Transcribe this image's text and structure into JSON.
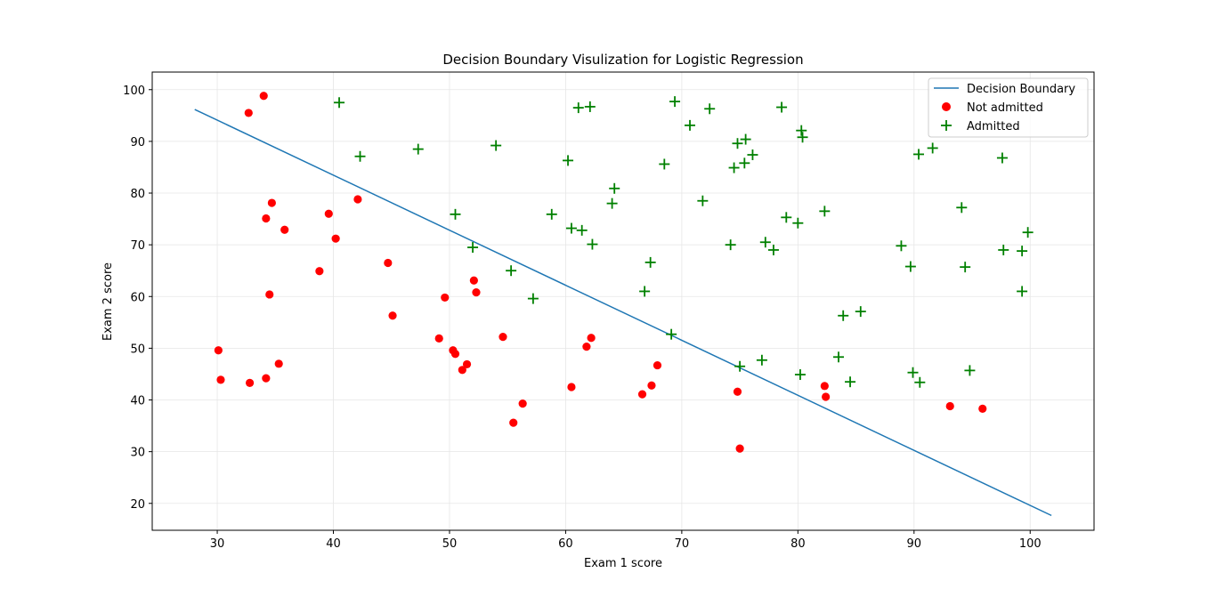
{
  "chart_data": {
    "type": "scatter",
    "title": "Decision Boundary Visulization for Logistic Regression",
    "xlabel": "Exam 1 score",
    "ylabel": "Exam 2 score",
    "xlim": [
      24.4,
      105.5
    ],
    "ylim": [
      14.8,
      103.4
    ],
    "xticks": [
      30,
      40,
      50,
      60,
      70,
      80,
      90,
      100
    ],
    "yticks": [
      20,
      30,
      40,
      50,
      60,
      70,
      80,
      90,
      100
    ],
    "grid": true,
    "legend_position": "top-right",
    "series": [
      {
        "name": "Decision Boundary",
        "kind": "line",
        "color": "#1f77b4",
        "x": [
          28.06,
          101.83
        ],
        "y": [
          96.17,
          17.66
        ]
      },
      {
        "name": "Not admitted",
        "kind": "scatter",
        "marker": "circle",
        "color": "#ff0000",
        "points": [
          [
            34.0,
            98.8
          ],
          [
            32.7,
            95.5
          ],
          [
            34.7,
            78.1
          ],
          [
            34.2,
            75.1
          ],
          [
            35.8,
            72.9
          ],
          [
            42.1,
            78.8
          ],
          [
            39.6,
            76.0
          ],
          [
            40.2,
            71.2
          ],
          [
            38.8,
            64.9
          ],
          [
            44.7,
            66.5
          ],
          [
            34.5,
            60.4
          ],
          [
            49.6,
            59.8
          ],
          [
            52.1,
            63.1
          ],
          [
            52.3,
            60.8
          ],
          [
            45.1,
            56.3
          ],
          [
            30.1,
            49.6
          ],
          [
            30.3,
            43.9
          ],
          [
            32.8,
            43.3
          ],
          [
            34.2,
            44.2
          ],
          [
            35.3,
            47.0
          ],
          [
            49.1,
            51.9
          ],
          [
            50.3,
            49.6
          ],
          [
            50.5,
            48.9
          ],
          [
            51.1,
            45.8
          ],
          [
            51.5,
            46.9
          ],
          [
            54.6,
            52.2
          ],
          [
            55.5,
            35.6
          ],
          [
            56.3,
            39.3
          ],
          [
            60.5,
            42.5
          ],
          [
            61.8,
            50.3
          ],
          [
            62.2,
            52.0
          ],
          [
            66.6,
            41.1
          ],
          [
            67.4,
            42.8
          ],
          [
            67.9,
            46.7
          ],
          [
            74.8,
            41.6
          ],
          [
            75.0,
            30.6
          ],
          [
            82.3,
            42.7
          ],
          [
            82.4,
            40.6
          ],
          [
            93.1,
            38.8
          ],
          [
            95.9,
            38.3
          ]
        ]
      },
      {
        "name": "Admitted",
        "kind": "scatter",
        "marker": "plus",
        "color": "#008000",
        "points": [
          [
            40.5,
            97.5
          ],
          [
            42.3,
            87.1
          ],
          [
            47.3,
            88.5
          ],
          [
            54.0,
            89.2
          ],
          [
            50.5,
            75.9
          ],
          [
            52.0,
            69.5
          ],
          [
            55.3,
            65.0
          ],
          [
            57.2,
            59.6
          ],
          [
            58.8,
            75.9
          ],
          [
            60.2,
            86.3
          ],
          [
            61.1,
            96.5
          ],
          [
            62.1,
            96.7
          ],
          [
            60.5,
            73.2
          ],
          [
            61.4,
            72.8
          ],
          [
            62.3,
            70.1
          ],
          [
            64.0,
            78.0
          ],
          [
            64.2,
            80.9
          ],
          [
            66.8,
            61.0
          ],
          [
            67.3,
            66.6
          ],
          [
            68.5,
            85.6
          ],
          [
            69.4,
            97.7
          ],
          [
            70.7,
            93.1
          ],
          [
            72.4,
            96.3
          ],
          [
            71.8,
            78.5
          ],
          [
            69.1,
            52.7
          ],
          [
            74.2,
            70.0
          ],
          [
            74.5,
            84.9
          ],
          [
            74.8,
            89.6
          ],
          [
            75.4,
            85.8
          ],
          [
            75.5,
            90.4
          ],
          [
            76.1,
            87.4
          ],
          [
            77.2,
            70.5
          ],
          [
            77.9,
            69.0
          ],
          [
            78.6,
            96.6
          ],
          [
            79.0,
            75.3
          ],
          [
            80.0,
            74.2
          ],
          [
            80.3,
            92.1
          ],
          [
            80.4,
            90.8
          ],
          [
            75.0,
            46.5
          ],
          [
            76.9,
            47.7
          ],
          [
            80.2,
            44.9
          ],
          [
            82.3,
            76.5
          ],
          [
            83.5,
            48.3
          ],
          [
            83.9,
            56.3
          ],
          [
            84.5,
            43.5
          ],
          [
            85.4,
            57.1
          ],
          [
            88.9,
            69.8
          ],
          [
            89.7,
            65.8
          ],
          [
            89.9,
            45.3
          ],
          [
            90.4,
            87.5
          ],
          [
            90.5,
            43.4
          ],
          [
            91.6,
            88.7
          ],
          [
            94.1,
            77.2
          ],
          [
            94.4,
            65.7
          ],
          [
            94.8,
            45.7
          ],
          [
            97.6,
            86.8
          ],
          [
            97.7,
            69.0
          ],
          [
            99.3,
            68.8
          ],
          [
            99.3,
            61.0
          ],
          [
            99.8,
            72.4
          ]
        ]
      }
    ]
  }
}
